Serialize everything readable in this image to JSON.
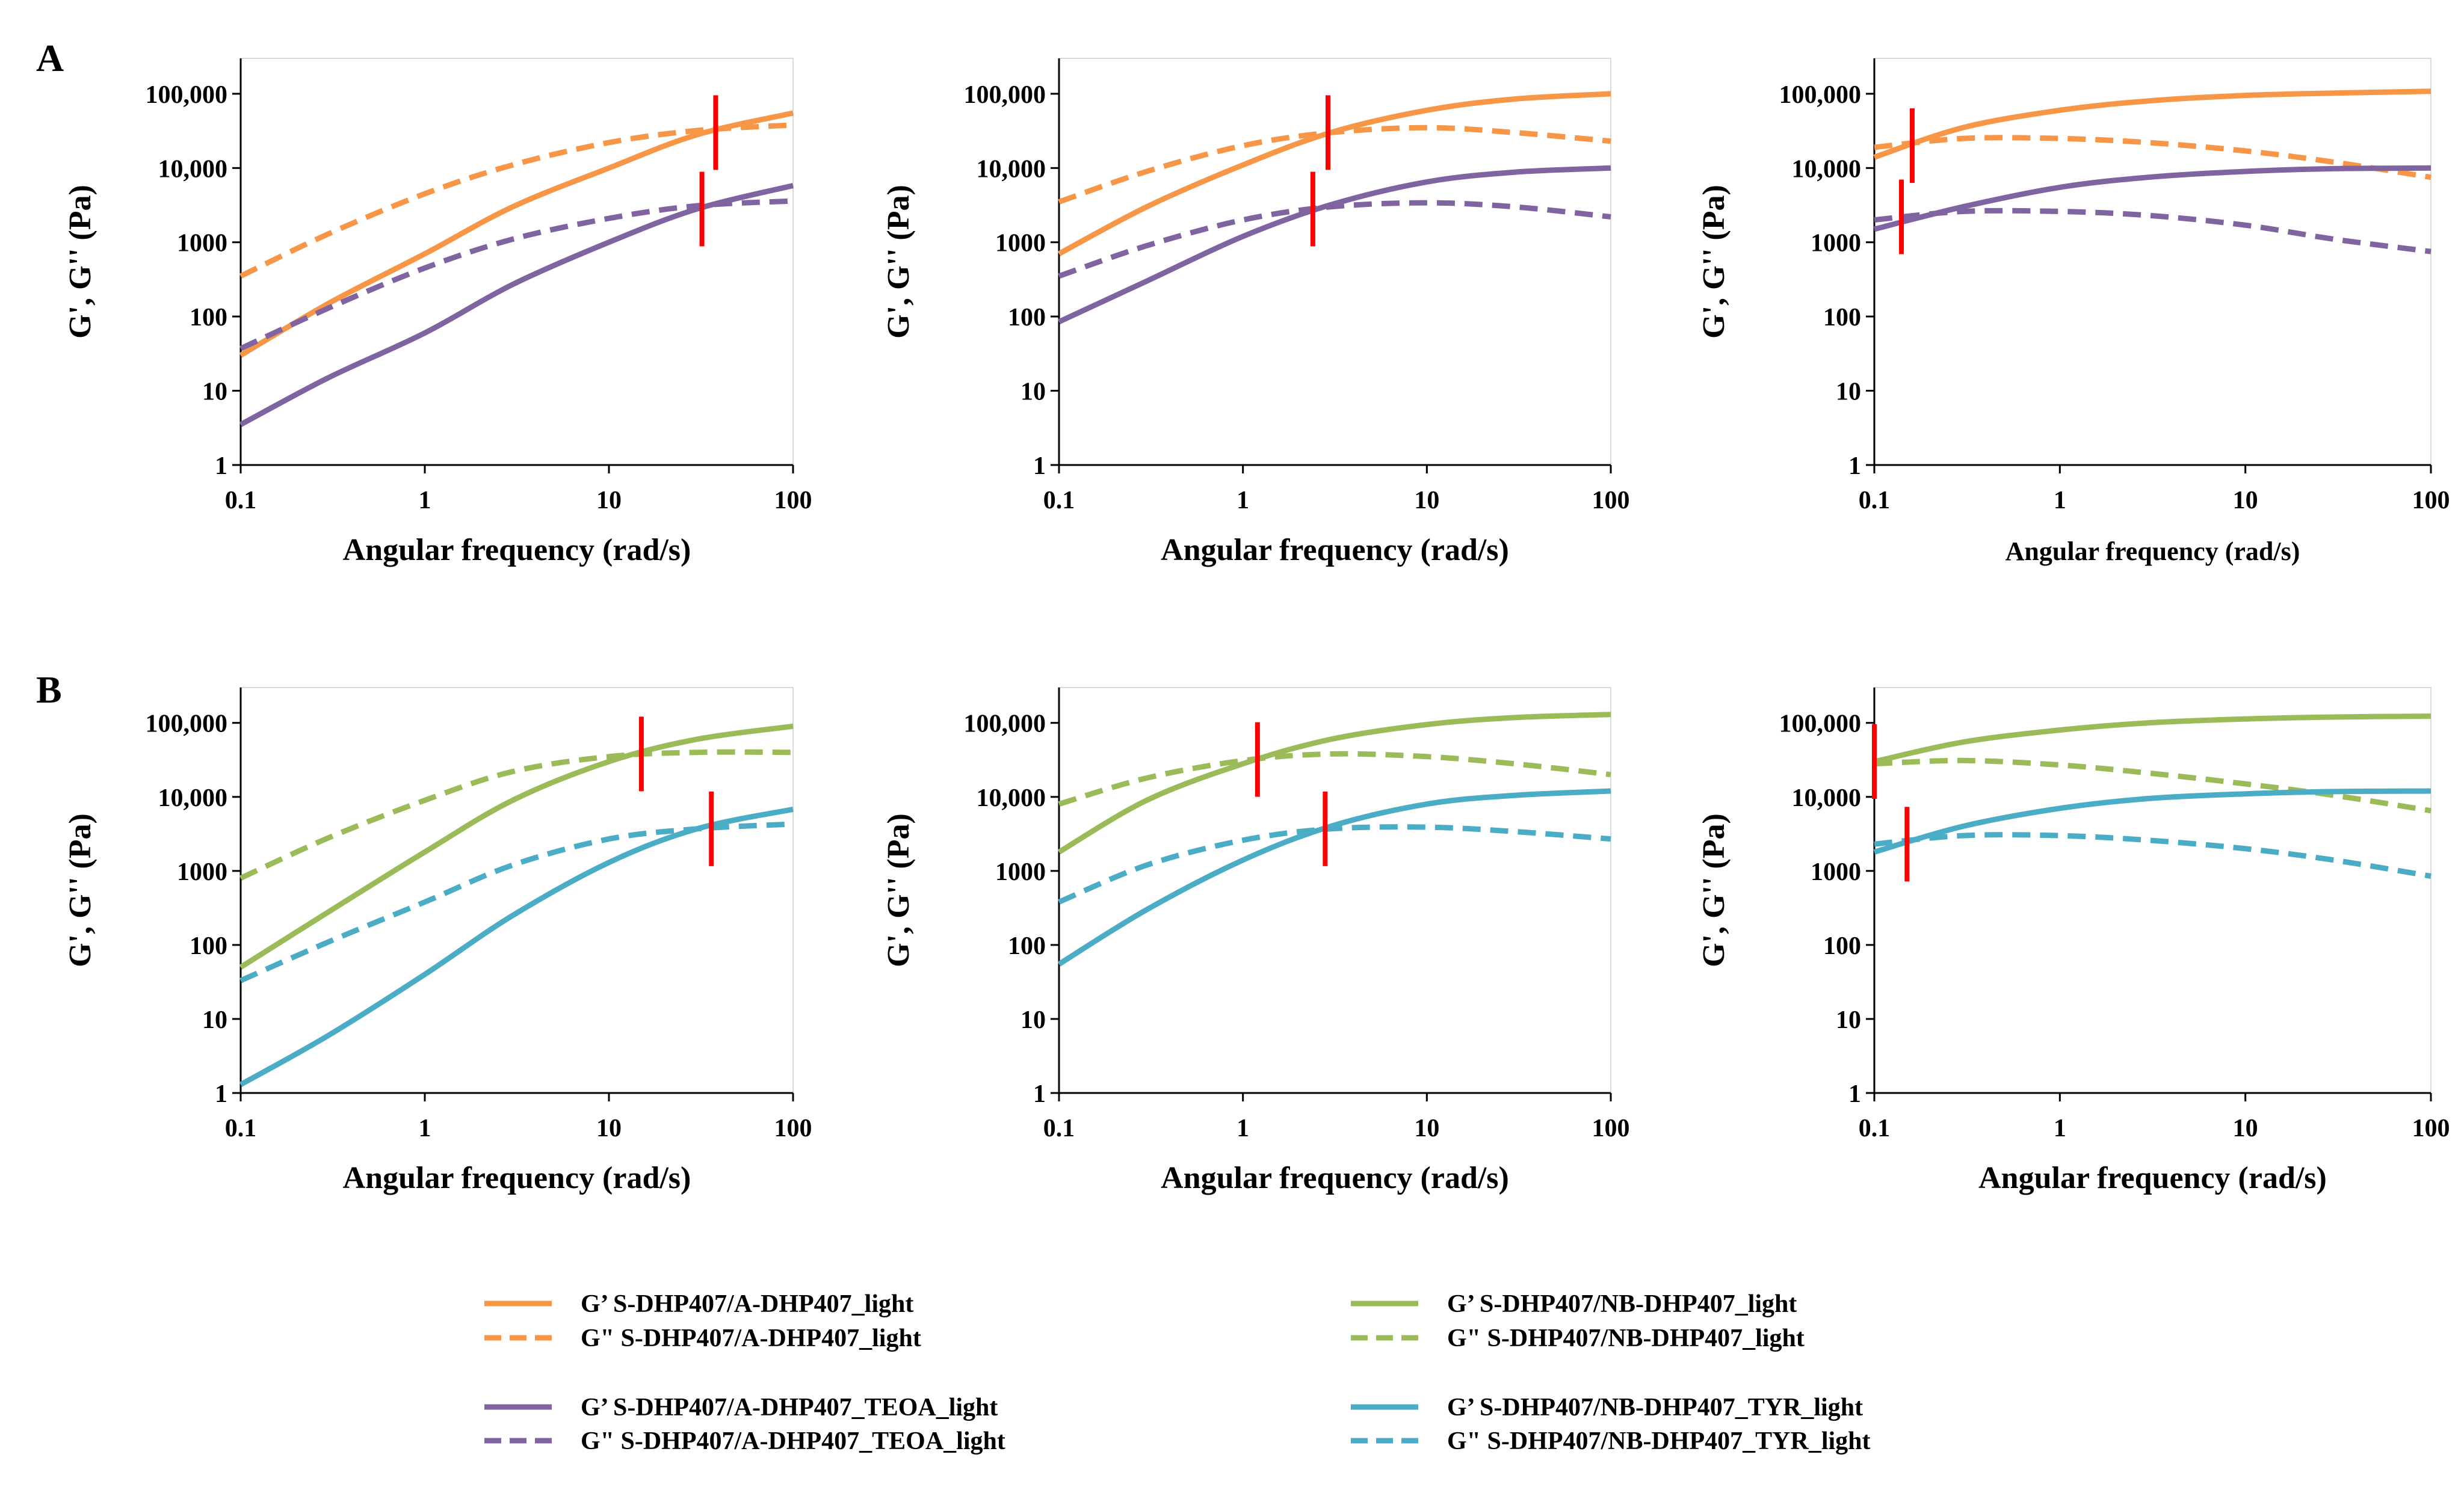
{
  "figure": {
    "panel_labels": [
      "A",
      "B"
    ],
    "colors": {
      "orange": "#F79646",
      "purple": "#8064A2",
      "green": "#9BBB59",
      "blue": "#4BACC6",
      "marker": "#FF0000",
      "axis": "#000000",
      "frame": "#d9d9d9"
    },
    "tick_values": [
      1,
      10,
      100,
      1000,
      10000,
      100000
    ],
    "tick_labels": [
      "1",
      "10",
      "100",
      "1000",
      "10,000",
      "100,000"
    ],
    "x_tick_values": [
      0.1,
      1,
      10,
      100
    ],
    "x_tick_labels": [
      "0.1",
      "1",
      "10",
      "100"
    ],
    "legend": [
      {
        "label": "G’ S-DHP407/A-DHP407_light",
        "color": "orange",
        "dash": false
      },
      {
        "label": "G\" S-DHP407/A-DHP407_light",
        "color": "orange",
        "dash": true
      },
      {
        "label": "G’ S-DHP407/A-DHP407_TEOA_light",
        "color": "purple",
        "dash": false
      },
      {
        "label": "G\" S-DHP407/A-DHP407_TEOA_light",
        "color": "purple",
        "dash": true
      },
      {
        "label": "G’ S-DHP407/NB-DHP407_light",
        "color": "green",
        "dash": false
      },
      {
        "label": "G\" S-DHP407/NB-DHP407_light",
        "color": "green",
        "dash": true
      },
      {
        "label": "G’ S-DHP407/NB-DHP407_TYR_light",
        "color": "blue",
        "dash": false
      },
      {
        "label": "G\" S-DHP407/NB-DHP407_TYR_light",
        "color": "blue",
        "dash": true
      }
    ]
  },
  "chart_data": [
    {
      "type": "line",
      "panel": "A",
      "title": "",
      "xlabel": "Angular frequency (rad/s)",
      "ylabel": "G', G'' (Pa)",
      "xscale": "log",
      "yscale": "log",
      "xlim": [
        0.1,
        100
      ],
      "ylim": [
        1,
        300000
      ],
      "x": [
        0.1,
        0.3,
        1,
        3,
        10,
        30,
        100
      ],
      "series": [
        {
          "name": "G’ S-DHP407/A-DHP407_light",
          "color": "orange",
          "dash": false,
          "values": [
            30,
            150,
            700,
            3000,
            10000,
            28000,
            55000
          ]
        },
        {
          "name": "G\" S-DHP407/A-DHP407_light",
          "color": "orange",
          "dash": true,
          "values": [
            350,
            1300,
            4500,
            11000,
            22000,
            32000,
            38000
          ]
        },
        {
          "name": "G’ S-DHP407/A-DHP407_TEOA_light",
          "color": "purple",
          "dash": false,
          "values": [
            3.5,
            15,
            60,
            270,
            1000,
            2800,
            5800
          ]
        },
        {
          "name": "G\" S-DHP407/A-DHP407_TEOA_light",
          "color": "purple",
          "dash": true,
          "values": [
            37,
            130,
            450,
            1100,
            2100,
            3100,
            3600
          ]
        }
      ],
      "crossovers": [
        {
          "x": 38,
          "y": 30000,
          "color": "orange"
        },
        {
          "x": 32,
          "y": 2800,
          "color": "purple"
        }
      ]
    },
    {
      "type": "line",
      "panel": "A",
      "title": "",
      "xlabel": "Angular frequency (rad/s)",
      "ylabel": "G', G'' (Pa)",
      "xscale": "log",
      "yscale": "log",
      "xlim": [
        0.1,
        100
      ],
      "ylim": [
        1,
        300000
      ],
      "x": [
        0.1,
        0.3,
        1,
        3,
        10,
        30,
        100
      ],
      "series": [
        {
          "name": "G’ S-DHP407/A-DHP407_light",
          "color": "orange",
          "dash": false,
          "values": [
            700,
            3000,
            11000,
            30000,
            60000,
            85000,
            100000
          ]
        },
        {
          "name": "G\" S-DHP407/A-DHP407_light",
          "color": "orange",
          "dash": true,
          "values": [
            3500,
            9000,
            20000,
            30000,
            35000,
            30000,
            23000
          ]
        },
        {
          "name": "G’ S-DHP407/A-DHP407_TEOA_light",
          "color": "purple",
          "dash": false,
          "values": [
            85,
            300,
            1200,
            3200,
            6500,
            8800,
            10000
          ]
        },
        {
          "name": "G\" S-DHP407/A-DHP407_TEOA_light",
          "color": "purple",
          "dash": true,
          "values": [
            350,
            900,
            2000,
            3000,
            3400,
            3000,
            2200
          ]
        }
      ],
      "crossovers": [
        {
          "x": 2.9,
          "y": 30000,
          "color": "orange"
        },
        {
          "x": 2.4,
          "y": 2800,
          "color": "purple"
        }
      ]
    },
    {
      "type": "line",
      "panel": "A",
      "title": "",
      "xlabel": "Angular frequency (rad/s)",
      "ylabel": "G', G'' (Pa)",
      "xscale": "log",
      "yscale": "log",
      "xlim": [
        0.1,
        100
      ],
      "ylim": [
        1,
        300000
      ],
      "x": [
        0.1,
        0.3,
        1,
        3,
        10,
        30,
        100
      ],
      "series": [
        {
          "name": "G’ S-DHP407/A-DHP407_light",
          "color": "orange",
          "dash": false,
          "values": [
            14000,
            35000,
            60000,
            80000,
            95000,
            102000,
            108000
          ]
        },
        {
          "name": "G\" S-DHP407/A-DHP407_light",
          "color": "orange",
          "dash": true,
          "values": [
            19000,
            25000,
            25000,
            22000,
            17000,
            12000,
            7500
          ]
        },
        {
          "name": "G’ S-DHP407/A-DHP407_TEOA_light",
          "color": "purple",
          "dash": false,
          "values": [
            1500,
            3000,
            5500,
            7500,
            9000,
            9800,
            10000
          ]
        },
        {
          "name": "G\" S-DHP407/A-DHP407_TEOA_light",
          "color": "purple",
          "dash": true,
          "values": [
            2000,
            2600,
            2600,
            2300,
            1700,
            1100,
            750
          ]
        }
      ],
      "crossovers": [
        {
          "x": 0.16,
          "y": 20000,
          "color": "orange"
        },
        {
          "x": 0.14,
          "y": 2200,
          "color": "purple"
        }
      ]
    },
    {
      "type": "line",
      "panel": "B",
      "title": "",
      "xlabel": "Angular frequency (rad/s)",
      "ylabel": "G', G'' (Pa)",
      "xscale": "log",
      "yscale": "log",
      "xlim": [
        0.1,
        100
      ],
      "ylim": [
        1,
        300000
      ],
      "x": [
        0.1,
        0.3,
        1,
        3,
        10,
        30,
        100
      ],
      "series": [
        {
          "name": "G’ S-DHP407/NB-DHP407_light",
          "color": "green",
          "dash": false,
          "values": [
            50,
            280,
            1800,
            9000,
            30000,
            60000,
            90000
          ]
        },
        {
          "name": "G\" S-DHP407/NB-DHP407_light",
          "color": "green",
          "dash": true,
          "values": [
            800,
            2800,
            9000,
            22000,
            35000,
            40000,
            40000
          ]
        },
        {
          "name": "G’ S-DHP407/NB-DHP407_TYR_light",
          "color": "blue",
          "dash": false,
          "values": [
            1.3,
            6,
            40,
            250,
            1300,
            3700,
            6800
          ]
        },
        {
          "name": "G\" S-DHP407/NB-DHP407_TYR_light",
          "color": "blue",
          "dash": true,
          "values": [
            33,
            110,
            380,
            1200,
            2700,
            3700,
            4300
          ]
        }
      ],
      "crossovers": [
        {
          "x": 15,
          "y": 38000,
          "color": "green"
        },
        {
          "x": 36,
          "y": 3700,
          "color": "blue"
        }
      ]
    },
    {
      "type": "line",
      "panel": "B",
      "title": "",
      "xlabel": "Angular frequency (rad/s)",
      "ylabel": "G', G'' (Pa)",
      "xscale": "log",
      "yscale": "log",
      "xlim": [
        0.1,
        100
      ],
      "ylim": [
        1,
        300000
      ],
      "x": [
        0.1,
        0.3,
        1,
        3,
        10,
        30,
        100
      ],
      "series": [
        {
          "name": "G’ S-DHP407/NB-DHP407_light",
          "color": "green",
          "dash": false,
          "values": [
            1800,
            9000,
            28000,
            60000,
            95000,
            118000,
            130000
          ]
        },
        {
          "name": "G\" S-DHP407/NB-DHP407_light",
          "color": "green",
          "dash": true,
          "values": [
            8000,
            18000,
            31000,
            38000,
            35000,
            28000,
            20000
          ]
        },
        {
          "name": "G’ S-DHP407/NB-DHP407_TYR_light",
          "color": "blue",
          "dash": false,
          "values": [
            55,
            300,
            1400,
            4000,
            8000,
            10500,
            12000
          ]
        },
        {
          "name": "G\" S-DHP407/NB-DHP407_TYR_light",
          "color": "blue",
          "dash": true,
          "values": [
            380,
            1200,
            2600,
            3700,
            3900,
            3400,
            2700
          ]
        }
      ],
      "crossovers": [
        {
          "x": 1.2,
          "y": 32000,
          "color": "green"
        },
        {
          "x": 2.8,
          "y": 3700,
          "color": "blue"
        }
      ]
    },
    {
      "type": "line",
      "panel": "B",
      "title": "",
      "xlabel": "Angular frequency (rad/s)",
      "ylabel": "G', G'' (Pa)",
      "xscale": "log",
      "yscale": "log",
      "xlim": [
        0.1,
        100
      ],
      "ylim": [
        1,
        300000
      ],
      "x": [
        0.1,
        0.3,
        1,
        3,
        10,
        30,
        100
      ],
      "series": [
        {
          "name": "G’ S-DHP407/NB-DHP407_light",
          "color": "green",
          "dash": false,
          "values": [
            30000,
            55000,
            80000,
            100000,
            113000,
            120000,
            123000
          ]
        },
        {
          "name": "G\" S-DHP407/NB-DHP407_light",
          "color": "green",
          "dash": true,
          "values": [
            28000,
            31000,
            27000,
            21000,
            15000,
            10500,
            6500
          ]
        },
        {
          "name": "G’ S-DHP407/NB-DHP407_TYR_light",
          "color": "blue",
          "dash": false,
          "values": [
            1800,
            4000,
            7000,
            9500,
            11000,
            11800,
            12000
          ]
        },
        {
          "name": "G\" S-DHP407/NB-DHP407_TYR_light",
          "color": "blue",
          "dash": true,
          "values": [
            2300,
            3000,
            3000,
            2600,
            2000,
            1400,
            850
          ]
        }
      ],
      "crossovers": [
        {
          "x": 0.1,
          "y": 30000,
          "color": "green"
        },
        {
          "x": 0.15,
          "y": 2300,
          "color": "blue"
        }
      ]
    }
  ]
}
